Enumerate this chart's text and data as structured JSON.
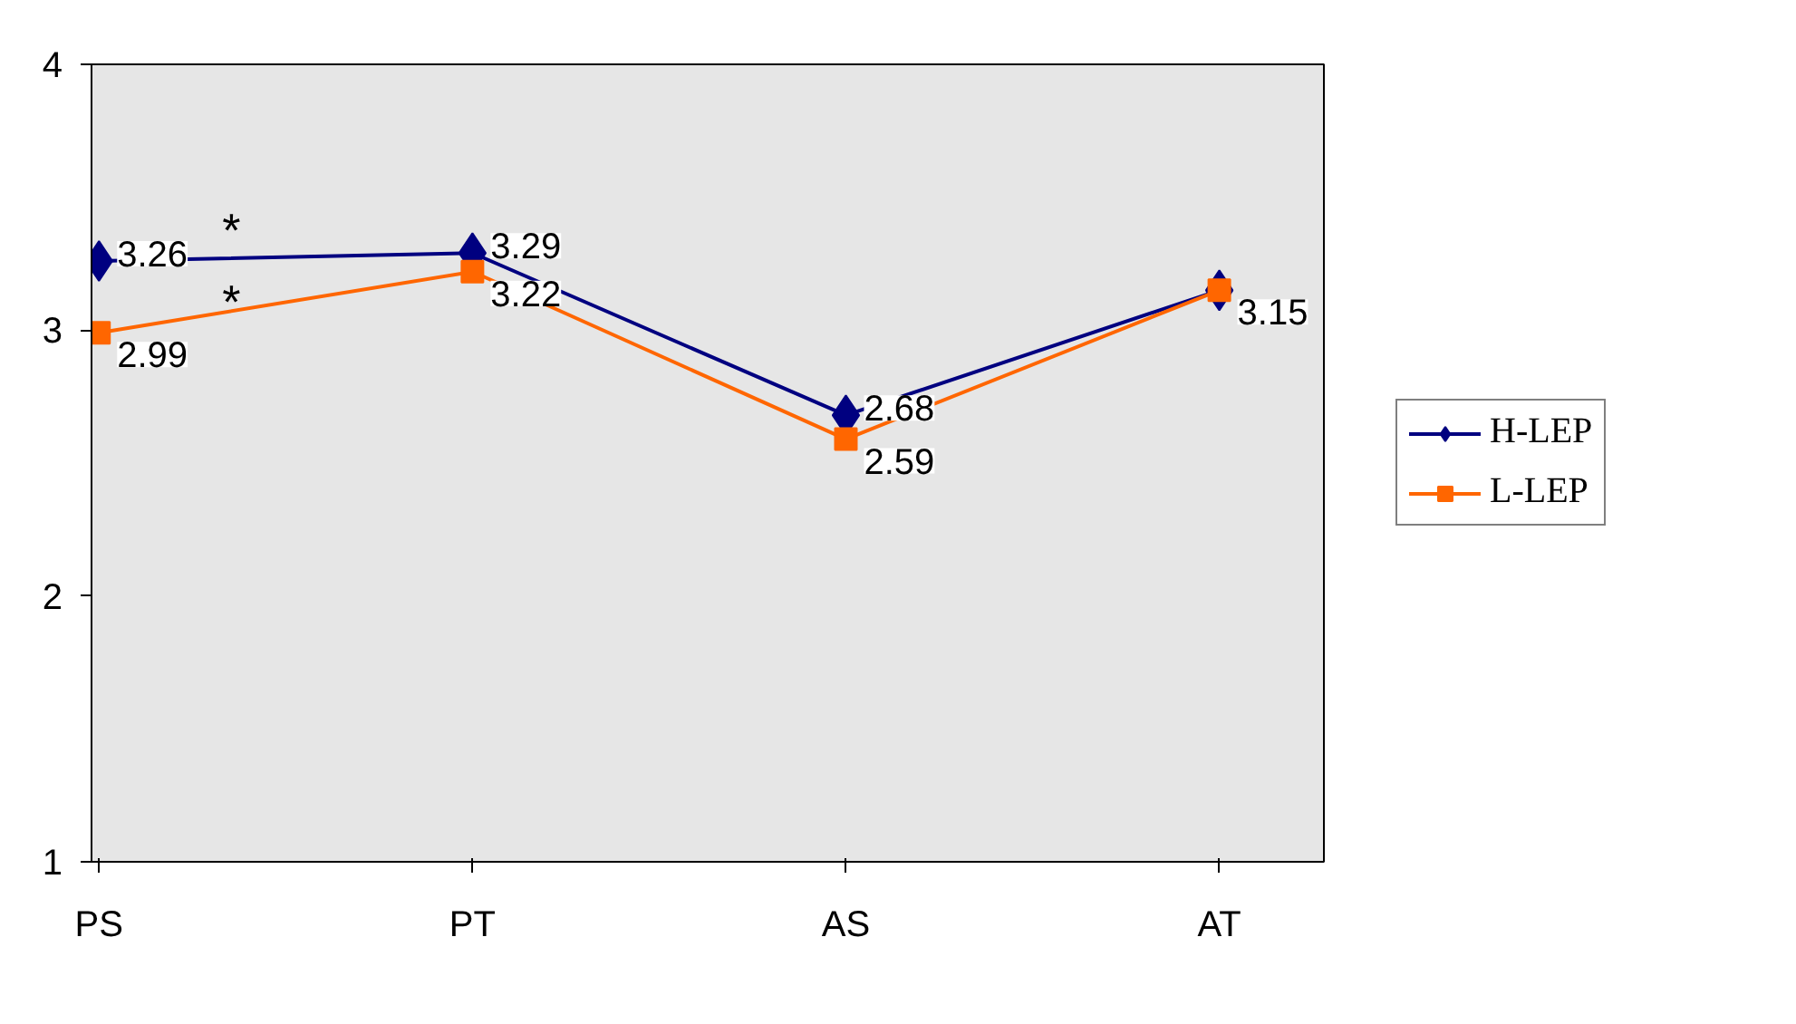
{
  "chart_data": {
    "type": "line",
    "categories": [
      "PS",
      "PT",
      "AS",
      "AT"
    ],
    "series": [
      {
        "name": "H-LEP",
        "color": "#000080",
        "marker": "diamond",
        "values": [
          3.26,
          3.29,
          2.68,
          3.15
        ],
        "value_labels": [
          "3.26",
          "3.29",
          "2.68",
          null
        ]
      },
      {
        "name": "L-LEP",
        "color": "#ff6600",
        "marker": "square",
        "values": [
          2.99,
          3.22,
          2.59,
          3.15
        ],
        "value_labels": [
          "2.99",
          "3.22",
          "2.59",
          "3.15"
        ]
      }
    ],
    "ylim": [
      1,
      4
    ],
    "yticks": [
      1,
      2,
      3,
      4
    ],
    "grid": false,
    "legend": "right",
    "annotations": [
      {
        "text": "*",
        "x": "PS",
        "y": 3.26
      },
      {
        "text": "*",
        "x": "PS",
        "y": 2.99
      }
    ]
  }
}
